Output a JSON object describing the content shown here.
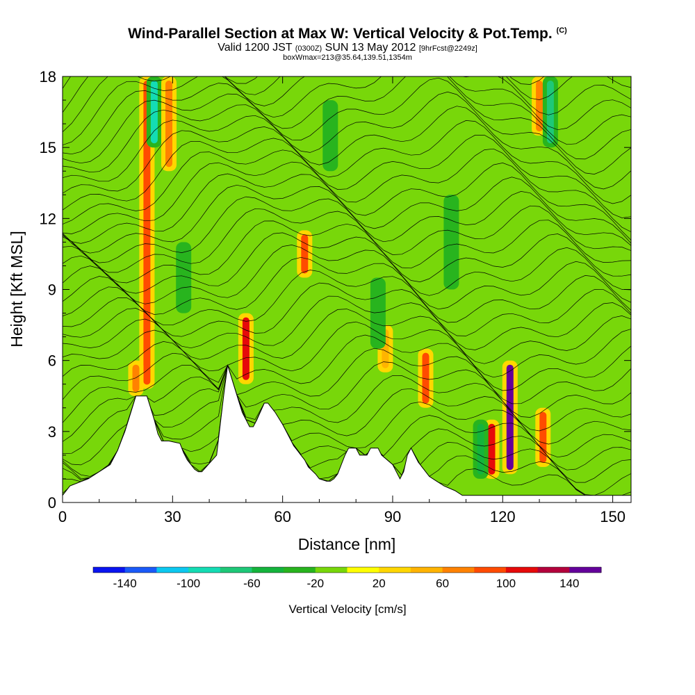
{
  "chart_data": {
    "type": "heatmap",
    "title": "Wind-Parallel Section at Max W: Vertical Velocity & Pot.Temp.",
    "title_mark": "(C)",
    "subtitle": {
      "valid": "Valid 1200 JST",
      "utc": "(0300Z)",
      "date": "SUN 13 May 2012",
      "forecast": "[9hrFcst@2249z]"
    },
    "box_line": "boxWmax=213@35.64,139.51,1354m",
    "xlabel": "Distance [nm]",
    "ylabel": "Height [Kft MSL]",
    "x_range": [
      0,
      155
    ],
    "y_range": [
      0,
      18
    ],
    "x_ticks": [
      "0",
      "30",
      "60",
      "90",
      "120",
      "150"
    ],
    "y_ticks": [
      "0",
      "3",
      "6",
      "9",
      "12",
      "15",
      "18"
    ],
    "colorbar": {
      "label": "Vertical Velocity [cm/s]",
      "tick_labels": [
        "-140",
        "-100",
        "-60",
        "-20",
        "20",
        "60",
        "100",
        "140"
      ],
      "colors": [
        "#0a14f0",
        "#1a5af8",
        "#0cc8f0",
        "#14dcb4",
        "#1ec878",
        "#14b43c",
        "#28b41e",
        "#78d70a",
        "#ffff00",
        "#ffd700",
        "#ffb400",
        "#ff8200",
        "#ff4b00",
        "#e60a0a",
        "#b4003c",
        "#64009b"
      ]
    },
    "terrain_profile": {
      "x": [
        0,
        2,
        7,
        10,
        13,
        14,
        15,
        16,
        17,
        18,
        19,
        20,
        23,
        24,
        25,
        26,
        27,
        29,
        32,
        33,
        34,
        35,
        36,
        37,
        38,
        42,
        43,
        44,
        45,
        46,
        47,
        48,
        49,
        50,
        51,
        52,
        53,
        55,
        56,
        57,
        58,
        60,
        61,
        62,
        63,
        64,
        65,
        66,
        67,
        69,
        70,
        72,
        73,
        74,
        75,
        76,
        77,
        78,
        80,
        81,
        83,
        84,
        86,
        87,
        90,
        91,
        92,
        93,
        94,
        95,
        96,
        97,
        98,
        100,
        102,
        104,
        107,
        109,
        111,
        113,
        115,
        117,
        119,
        121,
        123,
        125,
        128,
        131,
        135,
        140,
        145,
        150,
        152,
        155
      ],
      "y": [
        0.3,
        0.7,
        1.0,
        1.3,
        1.6,
        1.9,
        2.2,
        2.6,
        3.0,
        3.5,
        4.0,
        4.5,
        4.5,
        4.0,
        3.5,
        2.9,
        2.6,
        2.6,
        2.5,
        2.1,
        1.8,
        1.6,
        1.4,
        1.3,
        1.3,
        2.0,
        3.3,
        4.6,
        5.8,
        5.3,
        4.8,
        4.3,
        3.8,
        3.5,
        3.2,
        3.2,
        3.5,
        4.2,
        4.2,
        4.0,
        3.8,
        3.3,
        3.0,
        2.7,
        2.4,
        2.2,
        2.0,
        1.8,
        1.5,
        1.2,
        1.0,
        0.9,
        0.9,
        1.0,
        1.2,
        1.6,
        2.0,
        2.3,
        2.3,
        2.0,
        2.0,
        2.3,
        2.3,
        2.0,
        1.6,
        1.3,
        1.0,
        1.3,
        2.0,
        2.3,
        2.0,
        1.7,
        1.5,
        1.1,
        0.9,
        0.7,
        0.5,
        0.3,
        0.3,
        0.3,
        0.3,
        0.3,
        0.3,
        0.3,
        0.3,
        0.3,
        0.3,
        0.3,
        0.3,
        0.3,
        0.3,
        0.3,
        0.3,
        0.3
      ]
    },
    "w_features": [
      {
        "x": 23,
        "y": [
          4.8,
          18
        ],
        "w_cm_s": 80
      },
      {
        "x": 25,
        "y": [
          15,
          18
        ],
        "w_cm_s": -90
      },
      {
        "x": 29,
        "y": [
          14,
          18
        ],
        "w_cm_s": 60
      },
      {
        "x": 20,
        "y": [
          4.3,
          6
        ],
        "w_cm_s": 70
      },
      {
        "x": 50,
        "y": [
          5,
          8
        ],
        "w_cm_s": 100
      },
      {
        "x": 66,
        "y": [
          9.5,
          11.5
        ],
        "w_cm_s": 90
      },
      {
        "x": 99,
        "y": [
          4,
          6.5
        ],
        "w_cm_s": 90
      },
      {
        "x": 122,
        "y": [
          1.2,
          6
        ],
        "w_cm_s": 150
      },
      {
        "x": 117,
        "y": [
          1,
          3.5
        ],
        "w_cm_s": 100
      },
      {
        "x": 131,
        "y": [
          1.5,
          4
        ],
        "w_cm_s": 90
      },
      {
        "x": 130,
        "y": [
          15.5,
          18
        ],
        "w_cm_s": 60
      },
      {
        "x": 133,
        "y": [
          15,
          18
        ],
        "w_cm_s": -80
      },
      {
        "x": 88,
        "y": [
          5.5,
          7.5
        ],
        "w_cm_s": 50
      },
      {
        "x": 86,
        "y": [
          6.5,
          9.5
        ],
        "w_cm_s": -40
      },
      {
        "x": 114,
        "y": [
          1,
          3.5
        ],
        "w_cm_s": -50
      },
      {
        "x": 33,
        "y": [
          8,
          11
        ],
        "w_cm_s": -30
      },
      {
        "x": 73,
        "y": [
          14,
          17
        ],
        "w_cm_s": -30
      },
      {
        "x": 106,
        "y": [
          9,
          13
        ],
        "w_cm_s": -30
      }
    ],
    "theta_contours": "potential temperature isentropes, sloping upward to the right, spaced ~0.5 Kft"
  }
}
